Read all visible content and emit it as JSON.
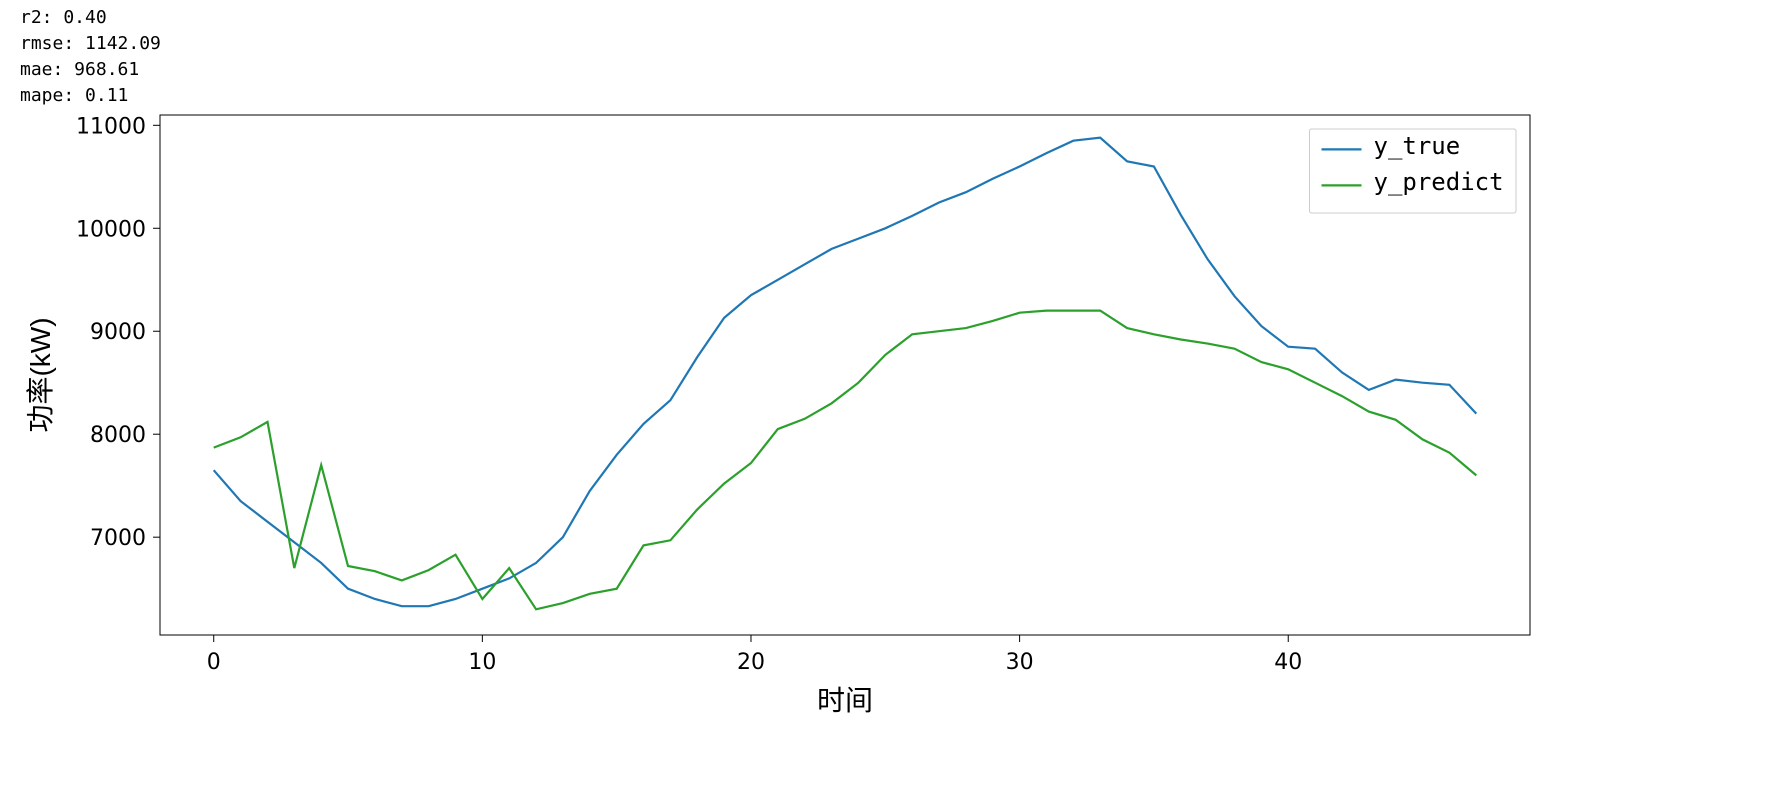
{
  "metrics": {
    "r2_label": "r2: 0.40",
    "rmse_label": "rmse: 1142.09",
    "mae_label": "mae: 968.61",
    "mape_label": "mape: 0.11"
  },
  "chart": {
    "type": "line",
    "background_color": "#ffffff",
    "xlabel": "时间",
    "ylabel": "功率(kW)",
    "label_fontsize": 28,
    "tick_fontsize": 22,
    "xlim": [
      -2,
      49
    ],
    "ylim": [
      6050,
      11100
    ],
    "xticks": [
      0,
      10,
      20,
      30,
      40
    ],
    "yticks": [
      7000,
      8000,
      9000,
      10000,
      11000
    ],
    "axis_color": "#000000",
    "series": [
      {
        "name": "y_true",
        "color": "#1f77b4",
        "x": [
          0,
          1,
          2,
          3,
          4,
          5,
          6,
          7,
          8,
          9,
          10,
          11,
          12,
          13,
          14,
          15,
          16,
          17,
          18,
          19,
          20,
          21,
          22,
          23,
          24,
          25,
          26,
          27,
          28,
          29,
          30,
          31,
          32,
          33,
          34,
          35,
          36,
          37,
          38,
          39,
          40,
          41,
          42,
          43,
          44,
          45,
          46,
          47
        ],
        "y": [
          7650,
          7350,
          7150,
          6950,
          6750,
          6500,
          6400,
          6330,
          6330,
          6400,
          6500,
          6600,
          6750,
          7000,
          7450,
          7800,
          8100,
          8330,
          8750,
          9130,
          9350,
          9500,
          9650,
          9800,
          9900,
          10000,
          10120,
          10250,
          10350,
          10480,
          10600,
          10730,
          10850,
          10880,
          10650,
          10600,
          10130,
          9700,
          9340,
          9050,
          8850,
          8830,
          8600,
          8430,
          8530,
          8500,
          8480,
          8200
        ]
      },
      {
        "name": "y_predict",
        "color": "#2ca02c",
        "x": [
          0,
          1,
          2,
          3,
          4,
          5,
          6,
          7,
          8,
          9,
          10,
          11,
          12,
          13,
          14,
          15,
          16,
          17,
          18,
          19,
          20,
          21,
          22,
          23,
          24,
          25,
          26,
          27,
          28,
          29,
          30,
          31,
          32,
          33,
          34,
          35,
          36,
          37,
          38,
          39,
          40,
          41,
          42,
          43,
          44,
          45,
          46,
          47
        ],
        "y": [
          7870,
          7970,
          8120,
          6700,
          7700,
          6720,
          6670,
          6580,
          6680,
          6830,
          6400,
          6700,
          6300,
          6360,
          6450,
          6500,
          6920,
          6970,
          7270,
          7520,
          7720,
          8050,
          8150,
          8300,
          8500,
          8770,
          8970,
          9000,
          9030,
          9100,
          9180,
          9200,
          9200,
          9200,
          9030,
          8970,
          8920,
          8880,
          8830,
          8700,
          8630,
          8500,
          8370,
          8220,
          8140,
          7950,
          7820,
          7600
        ]
      }
    ],
    "legend": {
      "position": "upper-right",
      "border_color": "#cccccc",
      "background": "#ffffff",
      "fontsize": 24,
      "items": [
        {
          "label": "y_true",
          "color": "#1f77b4"
        },
        {
          "label": "y_predict",
          "color": "#2ca02c"
        }
      ]
    }
  }
}
